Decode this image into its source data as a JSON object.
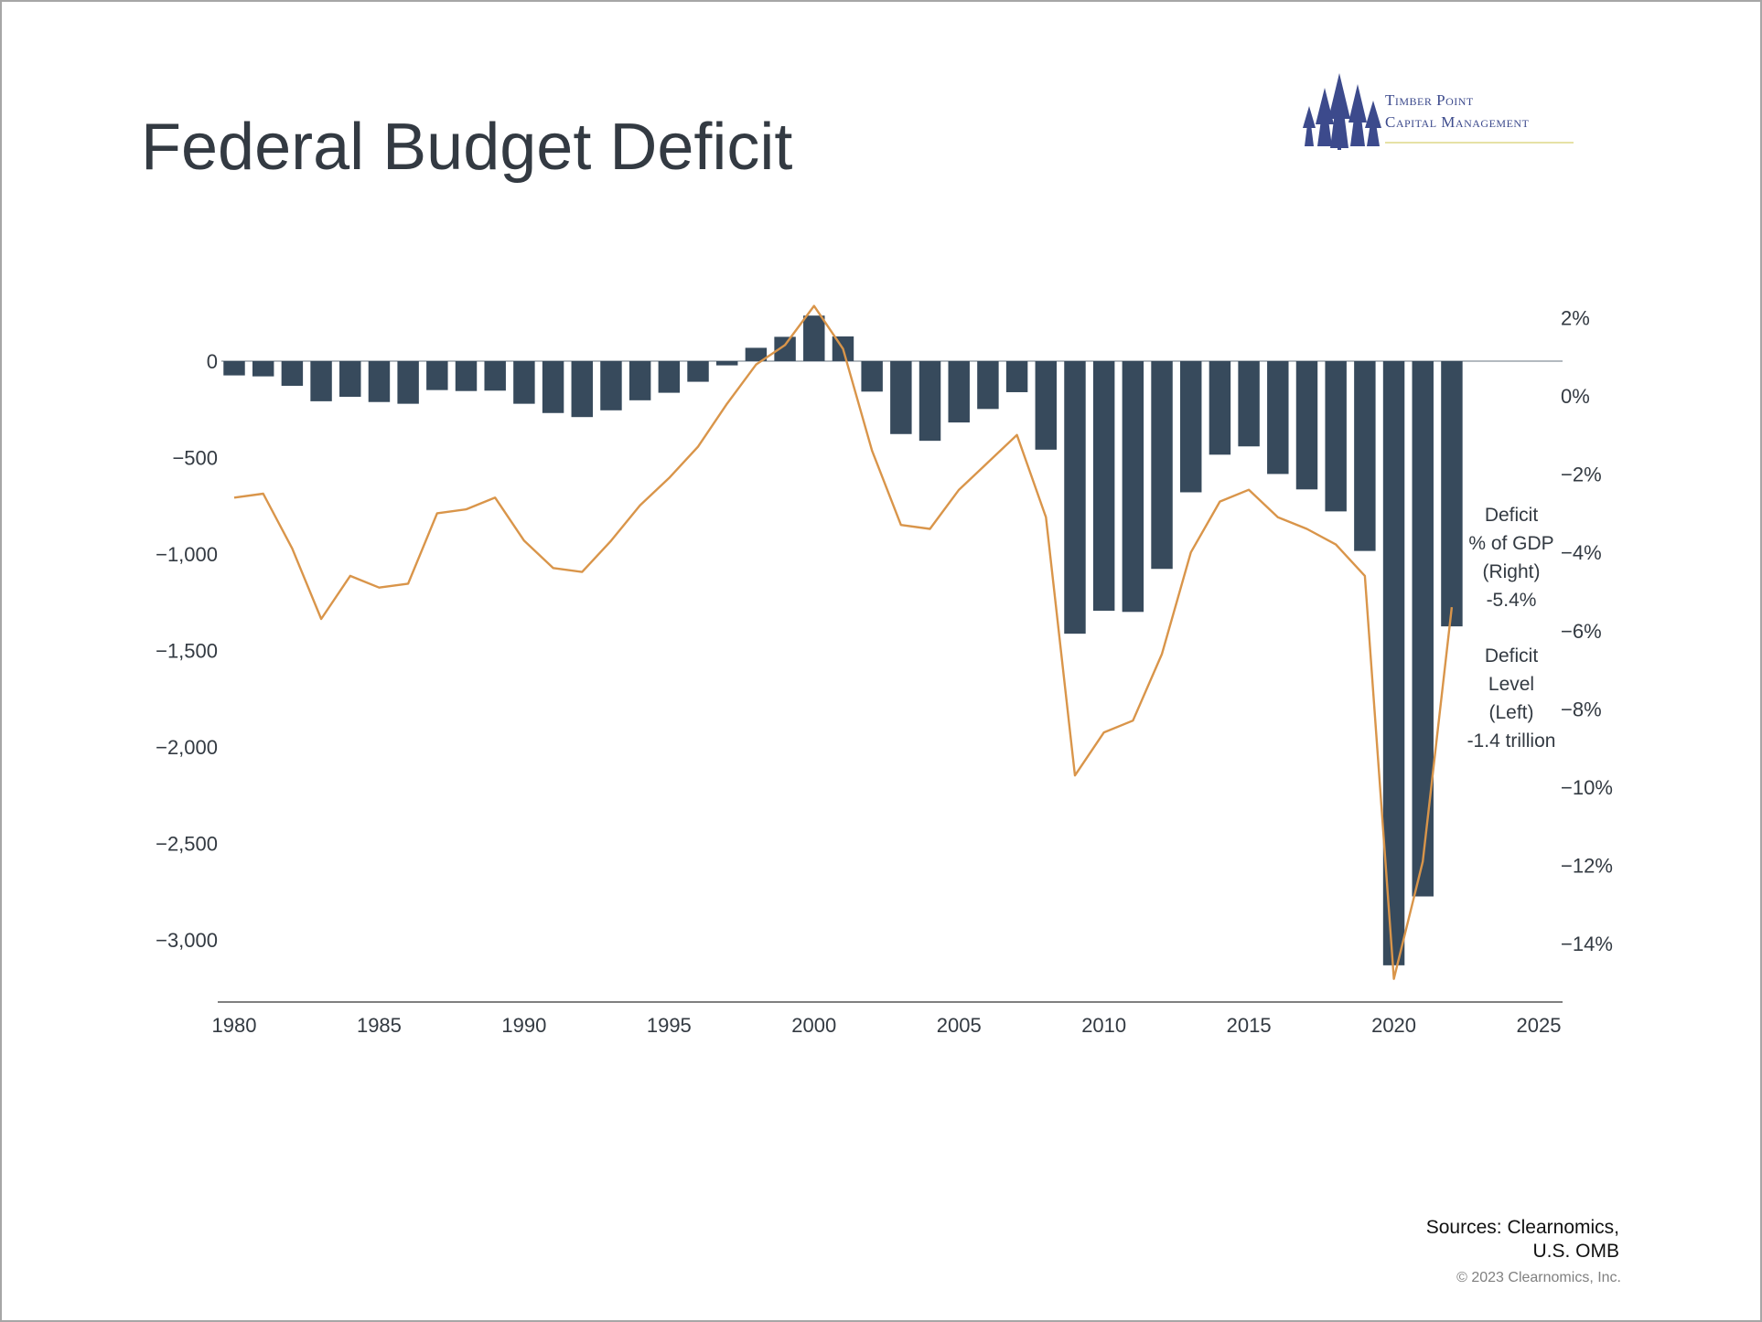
{
  "title": "Federal Budget Deficit",
  "logo": {
    "line1": "Timber Point",
    "line2": "Capital Management",
    "icon": "pine-trees-icon",
    "color": "#3c4a8c"
  },
  "sources": {
    "line1": "Sources: Clearnomics,",
    "line2": "U.S. OMB"
  },
  "copyright": "© 2023 Clearnomics, Inc.",
  "colors": {
    "bar": "#374a5c",
    "line": "#d9954a",
    "text": "#333a42",
    "axis": "#555555"
  },
  "chart_data": {
    "type": "bar",
    "title": "Federal Budget Deficit",
    "x": [
      1980,
      1981,
      1982,
      1983,
      1984,
      1985,
      1986,
      1987,
      1988,
      1989,
      1990,
      1991,
      1992,
      1993,
      1994,
      1995,
      1996,
      1997,
      1998,
      1999,
      2000,
      2001,
      2002,
      2003,
      2004,
      2005,
      2006,
      2007,
      2008,
      2009,
      2010,
      2011,
      2012,
      2013,
      2014,
      2015,
      2016,
      2017,
      2018,
      2019,
      2020,
      2021,
      2022
    ],
    "xlim": [
      1980,
      2025
    ],
    "x_ticks": [
      "1980",
      "1985",
      "1990",
      "1995",
      "2000",
      "2005",
      "2010",
      "2015",
      "2020",
      "2025"
    ],
    "left_axis": {
      "ylim": [
        -3300,
        0
      ],
      "ticks": [
        0,
        -500,
        -1000,
        -1500,
        -2000,
        -2500,
        -3000
      ],
      "tick_labels": [
        "0",
        "−500",
        "−1,000",
        "−1,500",
        "−2,000",
        "−2,500",
        "−3,000"
      ]
    },
    "right_axis": {
      "ylim": [
        -15,
        2
      ],
      "ticks": [
        2,
        0,
        -2,
        -4,
        -6,
        -8,
        -10,
        -12,
        -14
      ],
      "tick_labels": [
        "2%",
        "0%",
        "−2%",
        "−4%",
        "−6%",
        "−8%",
        "−10%",
        "−12%",
        "−14%"
      ]
    },
    "series": [
      {
        "name": "Deficit Level (Left)",
        "type": "bar",
        "axis": "left",
        "values": [
          -74,
          -79,
          -128,
          -208,
          -185,
          -212,
          -221,
          -150,
          -155,
          -153,
          -221,
          -269,
          -290,
          -255,
          -203,
          -164,
          -107,
          -22,
          69,
          126,
          236,
          128,
          -158,
          -378,
          -413,
          -318,
          -248,
          -161,
          -459,
          -1413,
          -1294,
          -1300,
          -1077,
          -680,
          -485,
          -442,
          -585,
          -665,
          -779,
          -984,
          -3132,
          -2775,
          -1375
        ]
      },
      {
        "name": "Deficit % of GDP (Right)",
        "type": "line",
        "axis": "right",
        "values": [
          -2.6,
          -2.5,
          -3.9,
          -5.7,
          -4.6,
          -4.9,
          -4.8,
          -3.0,
          -2.9,
          -2.6,
          -3.7,
          -4.4,
          -4.5,
          -3.7,
          -2.8,
          -2.1,
          -1.3,
          -0.2,
          0.8,
          1.3,
          2.3,
          1.2,
          -1.4,
          -3.3,
          -3.4,
          -2.4,
          -1.7,
          -1.0,
          -3.1,
          -9.7,
          -8.6,
          -8.3,
          -6.6,
          -4.0,
          -2.7,
          -2.4,
          -3.1,
          -3.4,
          -3.8,
          -4.6,
          -14.9,
          -11.9,
          -5.4
        ]
      }
    ],
    "annotations": {
      "gdp": [
        "Deficit",
        "% of GDP",
        "(Right)",
        "-5.4%"
      ],
      "level": [
        "Deficit",
        "Level",
        "(Left)",
        "-1.4 trillion"
      ]
    }
  }
}
